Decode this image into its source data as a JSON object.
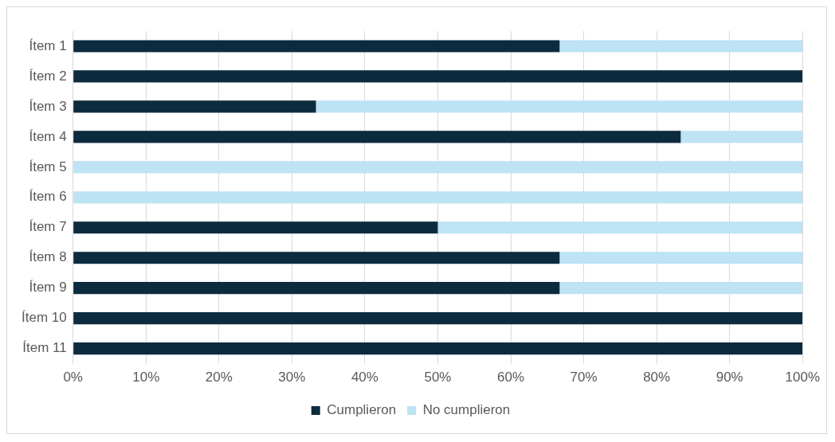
{
  "chart_data": {
    "type": "bar",
    "orientation": "horizontal",
    "stacked": true,
    "categories": [
      "Ítem 1",
      "Ítem 2",
      "Ítem 3",
      "Ítem 4",
      "Ítem 5",
      "Ítem 6",
      "Ítem 7",
      "Ítem 8",
      "Ítem 9",
      "Ítem 10",
      "Ítem 11"
    ],
    "series": [
      {
        "name": "Cumplieron",
        "color": "#0d2b3e",
        "values": [
          66.7,
          100,
          33.3,
          83.3,
          0,
          0,
          50,
          66.7,
          66.7,
          100,
          100
        ]
      },
      {
        "name": "No cumplieron",
        "color": "#bde3f4",
        "values": [
          33.3,
          0,
          66.7,
          16.7,
          100,
          100,
          50,
          33.3,
          33.3,
          0,
          0
        ]
      }
    ],
    "xlim": [
      0,
      100
    ],
    "xticks": [
      {
        "value": 0,
        "label": "0%"
      },
      {
        "value": 10,
        "label": "10%"
      },
      {
        "value": 20,
        "label": "20%"
      },
      {
        "value": 30,
        "label": "30%"
      },
      {
        "value": 40,
        "label": "40%"
      },
      {
        "value": 50,
        "label": "50%"
      },
      {
        "value": 60,
        "label": "60%"
      },
      {
        "value": 70,
        "label": "70%"
      },
      {
        "value": 80,
        "label": "80%"
      },
      {
        "value": 90,
        "label": "90%"
      },
      {
        "value": 100,
        "label": "100%"
      }
    ],
    "grid": "x",
    "legend": "bottom"
  }
}
